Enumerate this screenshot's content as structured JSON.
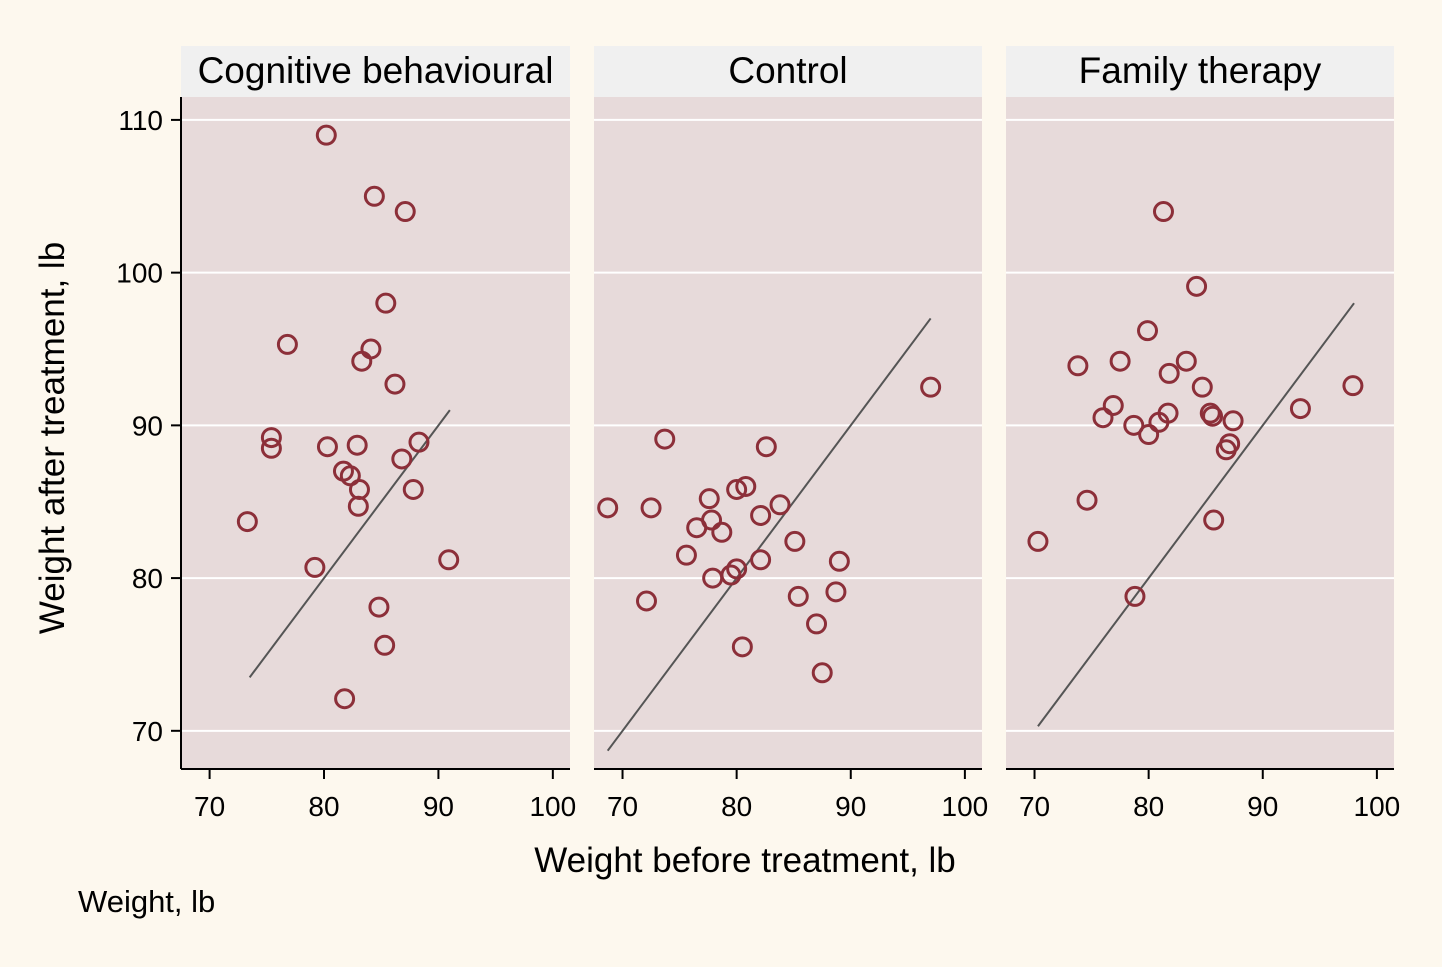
{
  "chart_data": {
    "type": "scatter",
    "layout": "facets",
    "xlabel": "Weight before treatment, lb",
    "ylabel": "Weight after treatment, lb",
    "note": "Weight, lb",
    "xlim": [
      67.5,
      101.5
    ],
    "ylim": [
      67.5,
      111.5
    ],
    "xticks": [
      70,
      80,
      90,
      100
    ],
    "yticks": [
      70,
      80,
      90,
      100,
      110
    ],
    "grid": "horizontal",
    "colors": {
      "page_background": "#fdf8ee",
      "plot_background": "#e7dada",
      "strip_background": "#f0f0f0",
      "marker": "#8c2f39",
      "line": "#555555"
    },
    "panels": [
      {
        "title": "Cognitive behavioural",
        "line": [
          [
            73.5,
            73.5
          ],
          [
            91.0,
            91.0
          ]
        ],
        "points": [
          [
            80.2,
            109.0
          ],
          [
            84.4,
            105.0
          ],
          [
            87.1,
            104.0
          ],
          [
            85.4,
            98.0
          ],
          [
            76.8,
            95.3
          ],
          [
            84.1,
            95.0
          ],
          [
            83.3,
            94.2
          ],
          [
            86.2,
            92.7
          ],
          [
            75.4,
            89.2
          ],
          [
            88.3,
            88.9
          ],
          [
            80.3,
            88.6
          ],
          [
            82.9,
            88.7
          ],
          [
            75.4,
            88.5
          ],
          [
            86.8,
            87.8
          ],
          [
            81.7,
            87.0
          ],
          [
            82.3,
            86.7
          ],
          [
            83.1,
            85.8
          ],
          [
            87.8,
            85.8
          ],
          [
            83.0,
            84.7
          ],
          [
            73.3,
            83.7
          ],
          [
            90.9,
            81.2
          ],
          [
            79.2,
            80.7
          ],
          [
            84.8,
            78.1
          ],
          [
            85.3,
            75.6
          ],
          [
            81.8,
            72.1
          ]
        ]
      },
      {
        "title": "Control",
        "line": [
          [
            68.7,
            68.7
          ],
          [
            97.0,
            97.0
          ]
        ],
        "points": [
          [
            97.0,
            92.5
          ],
          [
            73.7,
            89.1
          ],
          [
            82.6,
            88.6
          ],
          [
            80.8,
            86.0
          ],
          [
            80.0,
            85.8
          ],
          [
            77.6,
            85.2
          ],
          [
            83.8,
            84.8
          ],
          [
            68.7,
            84.6
          ],
          [
            72.5,
            84.6
          ],
          [
            77.8,
            83.8
          ],
          [
            82.1,
            84.1
          ],
          [
            76.5,
            83.3
          ],
          [
            78.7,
            83.0
          ],
          [
            85.1,
            82.4
          ],
          [
            75.6,
            81.5
          ],
          [
            82.1,
            81.2
          ],
          [
            89.0,
            81.1
          ],
          [
            80.0,
            80.6
          ],
          [
            79.5,
            80.2
          ],
          [
            77.9,
            80.0
          ],
          [
            88.7,
            79.1
          ],
          [
            85.4,
            78.8
          ],
          [
            72.1,
            78.5
          ],
          [
            87.0,
            77.0
          ],
          [
            80.5,
            75.5
          ],
          [
            87.5,
            73.8
          ]
        ]
      },
      {
        "title": "Family therapy",
        "line": [
          [
            70.3,
            70.3
          ],
          [
            98.0,
            98.0
          ]
        ],
        "points": [
          [
            81.3,
            104.0
          ],
          [
            84.2,
            99.1
          ],
          [
            79.9,
            96.2
          ],
          [
            73.8,
            93.9
          ],
          [
            77.5,
            94.2
          ],
          [
            83.3,
            94.2
          ],
          [
            81.8,
            93.4
          ],
          [
            84.7,
            92.5
          ],
          [
            97.9,
            92.6
          ],
          [
            93.3,
            91.1
          ],
          [
            76.9,
            91.3
          ],
          [
            85.4,
            90.8
          ],
          [
            81.7,
            90.8
          ],
          [
            85.6,
            90.6
          ],
          [
            76.0,
            90.5
          ],
          [
            80.9,
            90.2
          ],
          [
            87.4,
            90.3
          ],
          [
            78.7,
            90.0
          ],
          [
            80.0,
            89.4
          ],
          [
            87.1,
            88.8
          ],
          [
            86.8,
            88.4
          ],
          [
            74.6,
            85.1
          ],
          [
            85.7,
            83.8
          ],
          [
            70.3,
            82.4
          ],
          [
            78.8,
            78.8
          ]
        ]
      }
    ]
  }
}
